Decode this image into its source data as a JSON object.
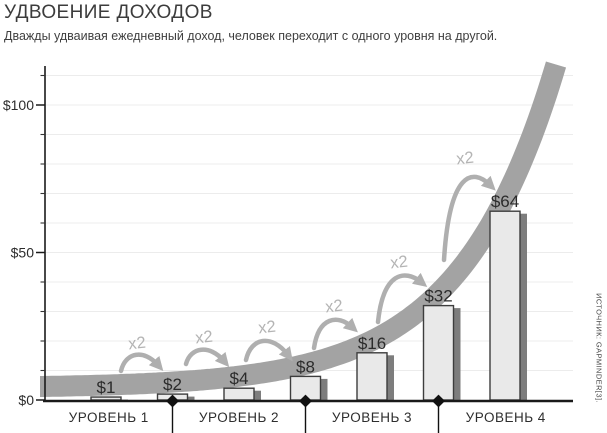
{
  "header": {
    "title": "УДВОЕНИЕ ДОХОДОВ",
    "subtitle": "Дважды удваивая ежедневный доход, человек переходит с одного уровня на другой."
  },
  "source": {
    "text": "ИСТОЧНИК: GAPMINDER[3]."
  },
  "chart_data": {
    "type": "bar",
    "title": "УДВОЕНИЕ ДОХОДОВ",
    "subtitle": "Дважды удваивая ежедневный доход, человек переходит с одного уровня на другой.",
    "categories": [
      "$1",
      "$2",
      "$4",
      "$8",
      "$16",
      "$32",
      "$64"
    ],
    "values": [
      1,
      2,
      4,
      8,
      16,
      32,
      64
    ],
    "multiplier_label": "x2",
    "curve": "exponential-doubling-band",
    "grid": "horizontal, every $10",
    "yaxis": {
      "ticks": [
        {
          "value": 0,
          "label": "$0"
        },
        {
          "value": 50,
          "label": "$50"
        },
        {
          "value": 100,
          "label": "$100"
        }
      ],
      "grid_step": 10,
      "max": 110,
      "ylim": [
        0,
        113
      ]
    },
    "levels": [
      {
        "label": "УРОВЕНЬ 1"
      },
      {
        "label": "УРОВЕНЬ 2"
      },
      {
        "label": "УРОВЕНЬ 3"
      },
      {
        "label": "УРОВЕНЬ 4"
      }
    ],
    "level_boundaries_at_bar_index": [
      1,
      3,
      5
    ],
    "level_boundary_values": [
      2,
      8,
      32
    ],
    "colors": {
      "bar_fill": "#e9e9e9",
      "bar_outline": "#3d3d3d",
      "bar_shadow": "#7d7d7d",
      "curve_band": "#a3a3a3",
      "arrow": "#afafaf",
      "x2_text": "#b4b4b4",
      "gridline": "#ececec",
      "axis": "#1a1a1a"
    }
  }
}
